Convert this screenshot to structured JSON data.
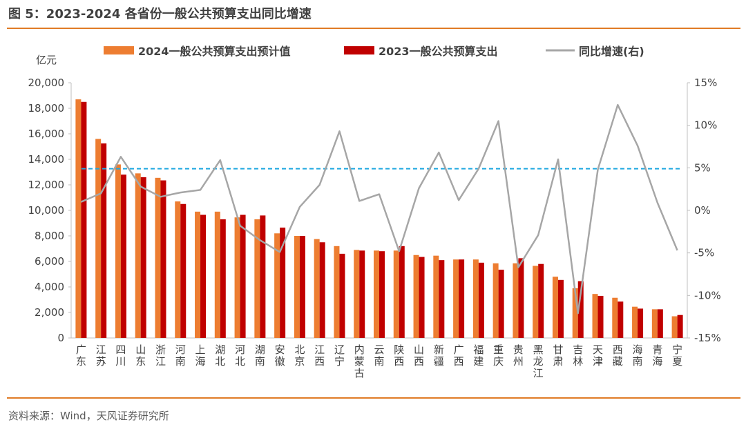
{
  "figure": {
    "title": "图 5：2023-2024 各省份一般公共预算支出同比增速",
    "source": "资料来源：Wind，天风证券研究所"
  },
  "colors": {
    "rule": "#e07b25",
    "bar_2024": "#ed7d31",
    "bar_2023": "#c00000",
    "growth_line": "#a6a6a6",
    "reference_line": "#1fa8e0"
  },
  "chart_data": {
    "type": "bar",
    "categories": [
      "广东",
      "江苏",
      "四川",
      "山东",
      "浙江",
      "河南",
      "上海",
      "湖北",
      "河北",
      "湖南",
      "安徽",
      "北京",
      "江西",
      "辽宁",
      "内蒙古",
      "云南",
      "陕西",
      "山西",
      "新疆",
      "广西",
      "福建",
      "重庆",
      "贵州",
      "黑龙江",
      "甘肃",
      "吉林",
      "天津",
      "西藏",
      "海南",
      "青海",
      "宁夏"
    ],
    "series": [
      {
        "name": "2024一般公共预算支出预计值",
        "type": "bar",
        "axis": "left",
        "values": [
          18700,
          15600,
          13600,
          12900,
          12550,
          10700,
          9900,
          9900,
          9450,
          9300,
          8200,
          8000,
          7750,
          7200,
          6900,
          6850,
          6850,
          6500,
          6450,
          6150,
          6150,
          5850,
          5850,
          5650,
          4800,
          3900,
          3450,
          3150,
          2450,
          2250,
          1700
        ]
      },
      {
        "name": "2023一般公共预算支出",
        "type": "bar",
        "axis": "left",
        "values": [
          18500,
          15250,
          12800,
          12600,
          12350,
          10500,
          9650,
          9300,
          9650,
          9600,
          8650,
          8000,
          7500,
          6600,
          6850,
          6800,
          7200,
          6350,
          6100,
          6150,
          5900,
          5350,
          6250,
          5800,
          4550,
          4450,
          3300,
          2850,
          2300,
          2250,
          1800
        ]
      },
      {
        "name": "同比增速(右)",
        "type": "line",
        "axis": "right",
        "values": [
          1.0,
          2.0,
          6.3,
          2.8,
          1.6,
          2.1,
          2.4,
          5.9,
          -1.8,
          -3.5,
          -4.9,
          0.4,
          3.0,
          9.3,
          1.1,
          1.9,
          -4.8,
          2.6,
          6.8,
          1.2,
          4.9,
          10.5,
          -6.7,
          -2.9,
          6.0,
          -12.1,
          4.8,
          12.4,
          7.6,
          0.9,
          -4.7
        ]
      }
    ],
    "reference_line": {
      "axis": "right",
      "value": 4.9
    },
    "y_left": {
      "label": "亿元",
      "min": 0,
      "max": 20000,
      "ticks": [
        "0",
        "2,000",
        "4,000",
        "6,000",
        "8,000",
        "10,000",
        "12,000",
        "14,000",
        "16,000",
        "18,000",
        "20,000"
      ]
    },
    "y_right": {
      "min": -15,
      "max": 15,
      "ticks": [
        "-15%",
        "-10%",
        "-5%",
        "0%",
        "5%",
        "10%",
        "15%"
      ]
    },
    "legend": "top",
    "grid": false
  }
}
